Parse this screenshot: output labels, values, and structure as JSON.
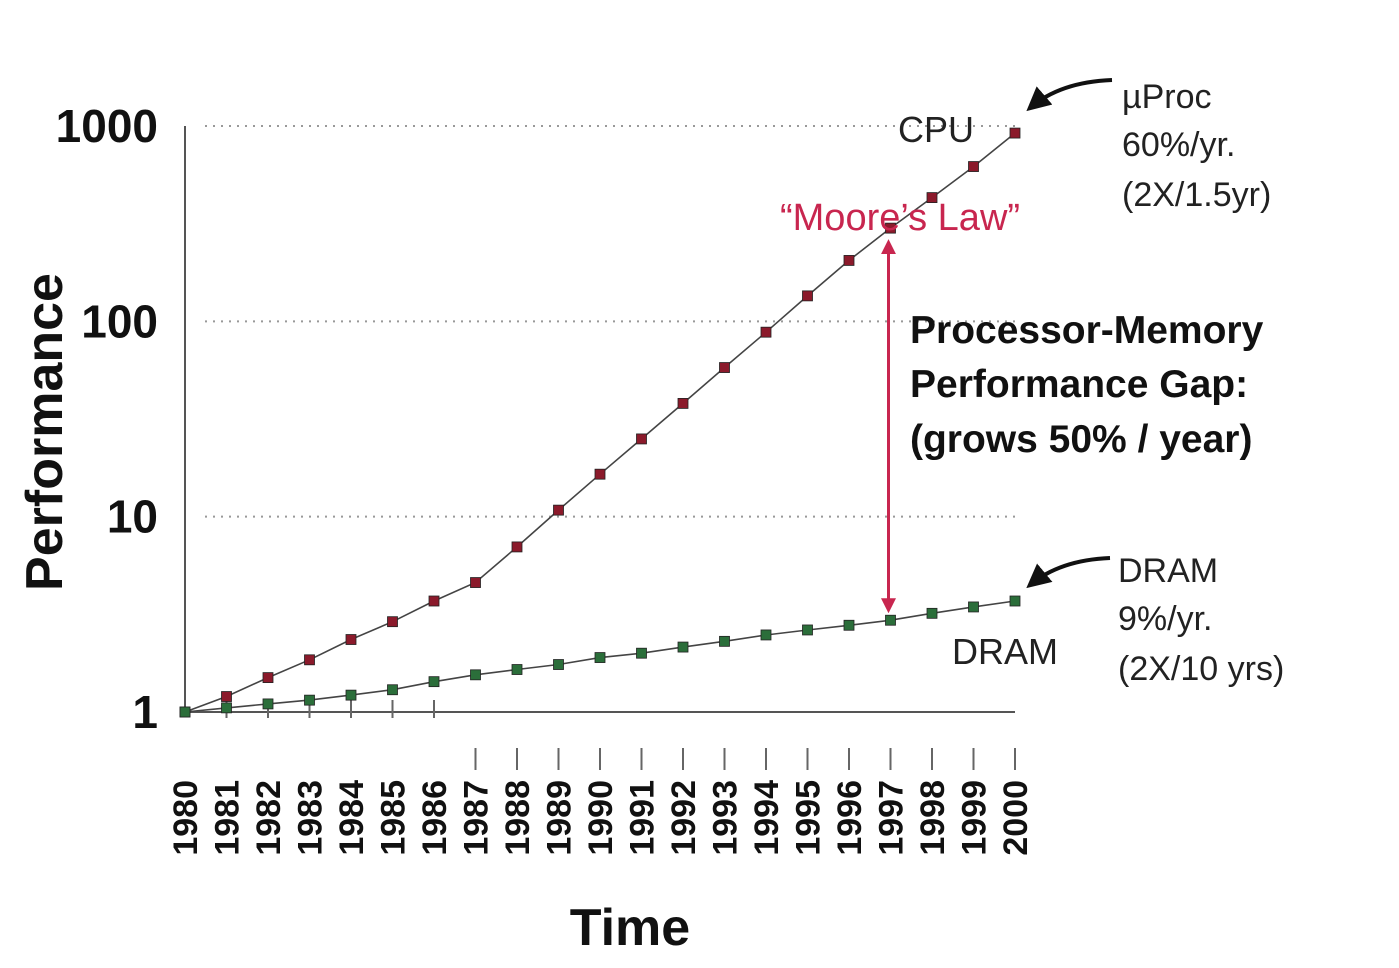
{
  "chart_data": {
    "type": "line",
    "title": "",
    "xlabel": "Time",
    "ylabel": "Performance",
    "yscale": "log",
    "ylim": [
      1,
      1000
    ],
    "yticks": [
      "1",
      "10",
      "100",
      "1000"
    ],
    "x": [
      "1980",
      "1981",
      "1982",
      "1983",
      "1984",
      "1985",
      "1986",
      "1987",
      "1988",
      "1989",
      "1990",
      "1991",
      "1992",
      "1993",
      "1994",
      "1995",
      "1996",
      "1997",
      "1998",
      "1999",
      "2000"
    ],
    "series": [
      {
        "name": "CPU",
        "color": "#8b1a2b",
        "values": [
          1,
          1.2,
          1.5,
          1.85,
          2.35,
          2.9,
          3.7,
          4.6,
          7.0,
          10.8,
          16.5,
          25,
          38,
          58,
          88,
          135,
          205,
          300,
          430,
          620,
          920
        ]
      },
      {
        "name": "DRAM",
        "color": "#2b6e3a",
        "values": [
          1,
          1.05,
          1.1,
          1.15,
          1.22,
          1.3,
          1.43,
          1.55,
          1.65,
          1.75,
          1.9,
          2.0,
          2.15,
          2.3,
          2.48,
          2.63,
          2.78,
          2.95,
          3.2,
          3.45,
          3.7
        ]
      }
    ],
    "series_labels": {
      "cpu": "CPU",
      "dram": "DRAM"
    },
    "annotations": {
      "uproc": [
        "µProc",
        "60%/yr.",
        "(2X/1.5yr)"
      ],
      "dram": [
        "DRAM",
        "9%/yr.",
        "(2X/10 yrs)"
      ],
      "moore": "“Moore’s Law”",
      "gap": [
        "Processor-Memory",
        "Performance Gap:",
        "(grows 50% / year)"
      ]
    },
    "colors": {
      "gap_arrow": "#c8264f",
      "axis": "#555555",
      "grid": "#999999"
    }
  }
}
